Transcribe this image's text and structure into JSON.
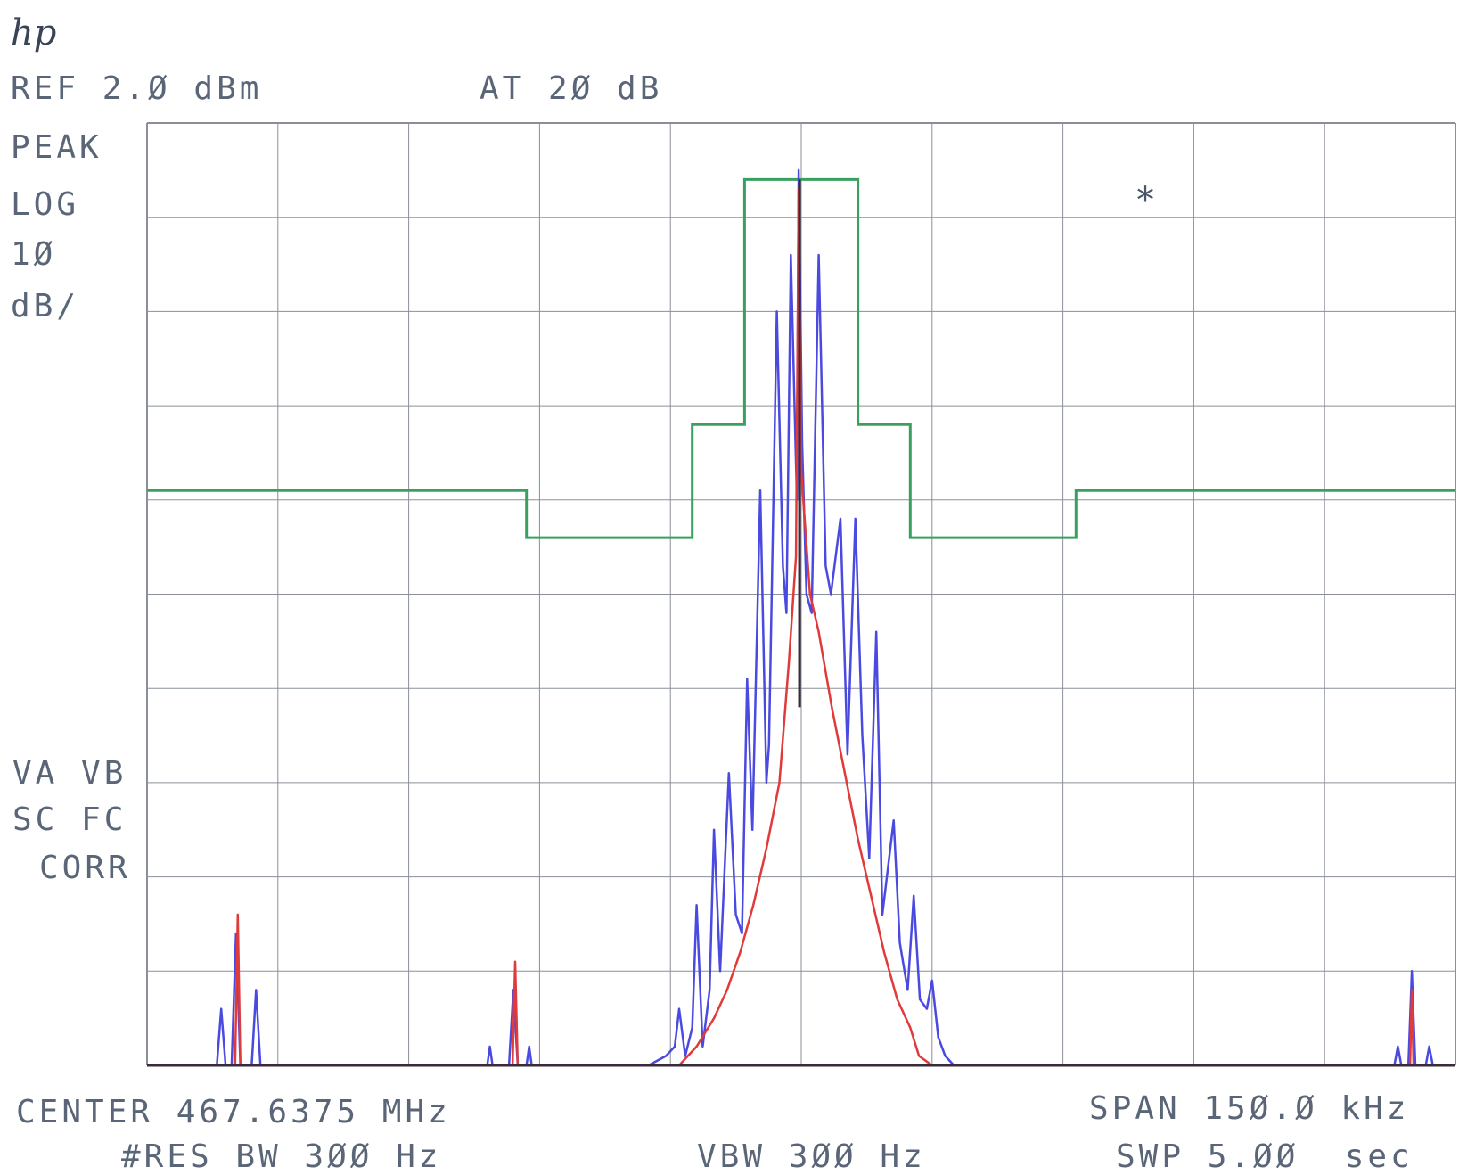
{
  "header": {
    "logo": "hp",
    "ref_level": "REF 2.Ø dBm",
    "attenuation": "AT 2Ø dB"
  },
  "left_panel": {
    "detector": "PEAK",
    "scale_mode": "LOG",
    "scale_value": "1Ø",
    "scale_unit": "dB/",
    "trace_status_1": "VA VB",
    "trace_status_2": "SC FC",
    "correction": "CORR"
  },
  "marker_symbol": "*",
  "footer": {
    "center": "CENTER 467.6375 MHz",
    "span": "SPAN 15Ø.Ø kHz",
    "res_bw": "#RES BW 3ØØ Hz",
    "vbw": "VBW 3ØØ Hz",
    "sweep": "SWP 5.ØØ  sec"
  },
  "colors": {
    "grid": "#8a8f98",
    "trace_blue": "#4a4ae0",
    "trace_red": "#e03a3a",
    "trace_dark": "#3a2a3a",
    "mask_green": "#3aa060",
    "text": "#5a6678"
  },
  "chart_data": {
    "type": "line",
    "xlabel": "",
    "ylabel": "",
    "x_unit": "kHz offset from center",
    "y_unit": "dBm",
    "xlim": [
      -75,
      75
    ],
    "ylim": [
      -98,
      2
    ],
    "grid": true,
    "divisions": {
      "x": 10,
      "y": 10
    },
    "y_scale_per_div": 10,
    "series": [
      {
        "points": [
          [
            -75,
            -98
          ],
          [
            -67,
            -98
          ],
          [
            -66.5,
            -92
          ],
          [
            -66,
            -98
          ],
          [
            -65.3,
            -98
          ],
          [
            -64.8,
            -84
          ],
          [
            -64.3,
            -98
          ],
          [
            -63,
            -98
          ],
          [
            -62.5,
            -90
          ],
          [
            -62,
            -98
          ],
          [
            -36,
            -98
          ],
          [
            -35.7,
            -96
          ],
          [
            -35.4,
            -98
          ],
          [
            -33.5,
            -98
          ],
          [
            -33,
            -90
          ],
          [
            -32.5,
            -98
          ],
          [
            -31.5,
            -98
          ],
          [
            -31.2,
            -96
          ],
          [
            -30.9,
            -98
          ],
          [
            -17.5,
            -98
          ],
          [
            -15.5,
            -97
          ],
          [
            -14.5,
            -96
          ],
          [
            -14,
            -92
          ],
          [
            -13.3,
            -97
          ],
          [
            -12.5,
            -94
          ],
          [
            -12,
            -81
          ],
          [
            -11.3,
            -96
          ],
          [
            -10.5,
            -90
          ],
          [
            -10,
            -73
          ],
          [
            -9.3,
            -88
          ],
          [
            -8.3,
            -67
          ],
          [
            -7.5,
            -82
          ],
          [
            -6.8,
            -84
          ],
          [
            -6.2,
            -57
          ],
          [
            -5.6,
            -73
          ],
          [
            -4.7,
            -37
          ],
          [
            -4,
            -68
          ],
          [
            -3.7,
            -64
          ],
          [
            -2.8,
            -18
          ],
          [
            -2.1,
            -45
          ],
          [
            -1.7,
            -50
          ],
          [
            -1.2,
            -12
          ],
          [
            -0.5,
            -38
          ],
          [
            -0.3,
            -3
          ],
          [
            0.1,
            -32
          ],
          [
            0.6,
            -48
          ],
          [
            1.2,
            -50
          ],
          [
            2,
            -12
          ],
          [
            2.8,
            -45
          ],
          [
            3.4,
            -48
          ],
          [
            4.5,
            -40
          ],
          [
            5.3,
            -65
          ],
          [
            6.2,
            -40
          ],
          [
            7,
            -63
          ],
          [
            7.8,
            -76
          ],
          [
            8.6,
            -52
          ],
          [
            9.3,
            -82
          ],
          [
            10.6,
            -72
          ],
          [
            11.3,
            -85
          ],
          [
            12.2,
            -90
          ],
          [
            12.9,
            -80
          ],
          [
            13.6,
            -91
          ],
          [
            14.4,
            -92
          ],
          [
            15,
            -89
          ],
          [
            15.7,
            -95
          ],
          [
            16.5,
            -97
          ],
          [
            17.5,
            -98
          ],
          [
            68,
            -98
          ],
          [
            68.4,
            -96
          ],
          [
            68.8,
            -98
          ],
          [
            69.6,
            -98
          ],
          [
            70,
            -88
          ],
          [
            70.4,
            -98
          ],
          [
            71.6,
            -98
          ],
          [
            72,
            -96
          ],
          [
            72.4,
            -98
          ],
          [
            75,
            -98
          ]
        ]
      },
      {
        "points": [
          [
            -75,
            -98
          ],
          [
            -64.9,
            -98
          ],
          [
            -64.6,
            -82
          ],
          [
            -64.3,
            -98
          ],
          [
            -33.1,
            -98
          ],
          [
            -32.8,
            -87
          ],
          [
            -32.5,
            -98
          ],
          [
            -17,
            -98
          ],
          [
            -14,
            -98
          ],
          [
            -12,
            -96
          ],
          [
            -10,
            -93
          ],
          [
            -8.5,
            -90
          ],
          [
            -7,
            -86
          ],
          [
            -5.5,
            -81
          ],
          [
            -4,
            -75
          ],
          [
            -2.5,
            -68
          ],
          [
            -1.4,
            -55
          ],
          [
            -0.6,
            -44
          ],
          [
            -0.3,
            -5
          ],
          [
            0,
            -35
          ],
          [
            1,
            -48
          ],
          [
            2,
            -52
          ],
          [
            3.5,
            -60
          ],
          [
            5,
            -67
          ],
          [
            6.5,
            -74
          ],
          [
            8,
            -80
          ],
          [
            9.5,
            -86
          ],
          [
            11,
            -91
          ],
          [
            12.5,
            -94
          ],
          [
            13.5,
            -97
          ],
          [
            15,
            -98
          ],
          [
            69.8,
            -98
          ],
          [
            70,
            -90
          ],
          [
            70.2,
            -98
          ],
          [
            75,
            -98
          ]
        ]
      }
    ],
    "mask": {
      "points": [
        [
          -75,
          -37
        ],
        [
          -31.5,
          -37
        ],
        [
          -31.5,
          -42
        ],
        [
          -12.5,
          -42
        ],
        [
          -12.5,
          -30
        ],
        [
          -6.5,
          -30
        ],
        [
          -6.5,
          -4
        ],
        [
          6.5,
          -4
        ],
        [
          6.5,
          -30
        ],
        [
          12.5,
          -30
        ],
        [
          12.5,
          -42
        ],
        [
          31.5,
          -42
        ],
        [
          31.5,
          -37
        ],
        [
          75,
          -37
        ]
      ]
    }
  }
}
